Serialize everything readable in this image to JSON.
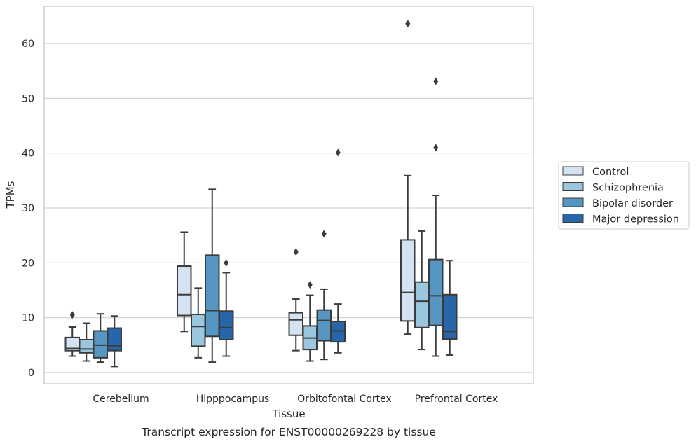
{
  "chart_data": {
    "type": "box",
    "caption": "Transcript expression for ENST00000269228 by tissue",
    "xlabel": "Tissue",
    "ylabel": "TPMs",
    "ylim": [
      -2,
      67
    ],
    "yticks": [
      0,
      10,
      20,
      30,
      40,
      50,
      60
    ],
    "grid": true,
    "legend_position": "right",
    "categories": [
      "Cerebellum",
      "Hipppocampus",
      "Orbitofontal Cortex",
      "Prefrontal Cortex"
    ],
    "series": [
      {
        "name": "Control",
        "color": "#d4e3f2",
        "boxes": [
          {
            "whisker_low": 3.0,
            "q1": 4.0,
            "median": 4.4,
            "q3": 6.4,
            "whisker_high": 8.3,
            "outliers": [
              10.5
            ]
          },
          {
            "whisker_low": 7.5,
            "q1": 10.4,
            "median": 14.2,
            "q3": 19.4,
            "whisker_high": 25.6,
            "outliers": []
          },
          {
            "whisker_low": 4.0,
            "q1": 6.8,
            "median": 9.6,
            "q3": 10.9,
            "whisker_high": 13.4,
            "outliers": [
              22.0
            ]
          },
          {
            "whisker_low": 7.0,
            "q1": 9.4,
            "median": 14.6,
            "q3": 24.2,
            "whisker_high": 35.9,
            "outliers": [
              63.6
            ]
          }
        ]
      },
      {
        "name": "Schizophrenia",
        "color": "#9ac6de",
        "boxes": [
          {
            "whisker_low": 2.1,
            "q1": 3.6,
            "median": 4.3,
            "q3": 6.0,
            "whisker_high": 9.0,
            "outliers": []
          },
          {
            "whisker_low": 2.7,
            "q1": 4.8,
            "median": 8.4,
            "q3": 10.6,
            "whisker_high": 15.4,
            "outliers": []
          },
          {
            "whisker_low": 2.1,
            "q1": 4.2,
            "median": 6.3,
            "q3": 8.5,
            "whisker_high": 14.1,
            "outliers": [
              16.0
            ]
          },
          {
            "whisker_low": 4.2,
            "q1": 8.2,
            "median": 13.0,
            "q3": 16.5,
            "whisker_high": 25.8,
            "outliers": []
          }
        ]
      },
      {
        "name": "Bipolar disorder",
        "color": "#5596c3",
        "boxes": [
          {
            "whisker_low": 1.9,
            "q1": 2.7,
            "median": 5.0,
            "q3": 7.6,
            "whisker_high": 10.7,
            "outliers": []
          },
          {
            "whisker_low": 1.9,
            "q1": 6.6,
            "median": 11.3,
            "q3": 21.4,
            "whisker_high": 33.4,
            "outliers": []
          },
          {
            "whisker_low": 2.4,
            "q1": 5.8,
            "median": 9.5,
            "q3": 11.4,
            "whisker_high": 15.2,
            "outliers": [
              25.3
            ]
          },
          {
            "whisker_low": 3.0,
            "q1": 8.6,
            "median": 14.0,
            "q3": 20.6,
            "whisker_high": 32.3,
            "outliers": [
              41.0,
              53.1
            ]
          }
        ]
      },
      {
        "name": "Major depression",
        "color": "#2766a8",
        "boxes": [
          {
            "whisker_low": 1.1,
            "q1": 4.0,
            "median": 4.9,
            "q3": 8.1,
            "whisker_high": 10.3,
            "outliers": []
          },
          {
            "whisker_low": 3.0,
            "q1": 6.0,
            "median": 8.2,
            "q3": 11.2,
            "whisker_high": 18.2,
            "outliers": [
              20.0
            ]
          },
          {
            "whisker_low": 3.6,
            "q1": 5.6,
            "median": 7.6,
            "q3": 9.3,
            "whisker_high": 12.5,
            "outliers": [
              40.1
            ]
          },
          {
            "whisker_low": 3.2,
            "q1": 6.1,
            "median": 7.5,
            "q3": 14.2,
            "whisker_high": 20.4,
            "outliers": []
          }
        ]
      }
    ]
  }
}
